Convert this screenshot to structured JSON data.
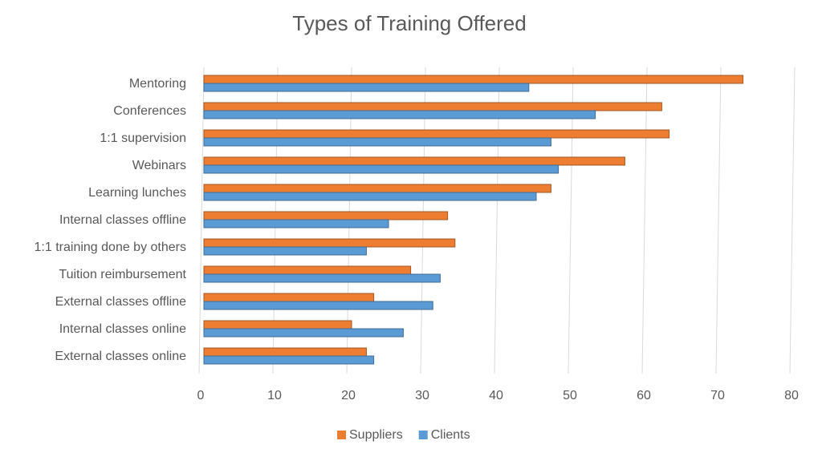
{
  "chart_data": {
    "type": "hbar",
    "title": "Types of Training Offered",
    "categories": [
      "Mentoring",
      "Conferences",
      "1:1 supervision",
      "Webinars",
      "Learning lunches",
      "Internal classes offline",
      "1:1 training done by others",
      "Tuition reimbursement",
      "External classes offline",
      "Internal classes online",
      "External classes online"
    ],
    "series": [
      {
        "name": "Suppliers",
        "color": "#ed7d31",
        "values": [
          73,
          62,
          63,
          57,
          47,
          33,
          34,
          28,
          23,
          20,
          22
        ]
      },
      {
        "name": "Clients",
        "color": "#5b9bd5",
        "values": [
          44,
          53,
          47,
          48,
          45,
          25,
          22,
          32,
          31,
          27,
          23
        ]
      }
    ],
    "xlim": [
      0,
      80
    ],
    "xticks": [
      0,
      10,
      20,
      30,
      40,
      50,
      60,
      70,
      80
    ],
    "grid": true,
    "legend": "bottom"
  }
}
